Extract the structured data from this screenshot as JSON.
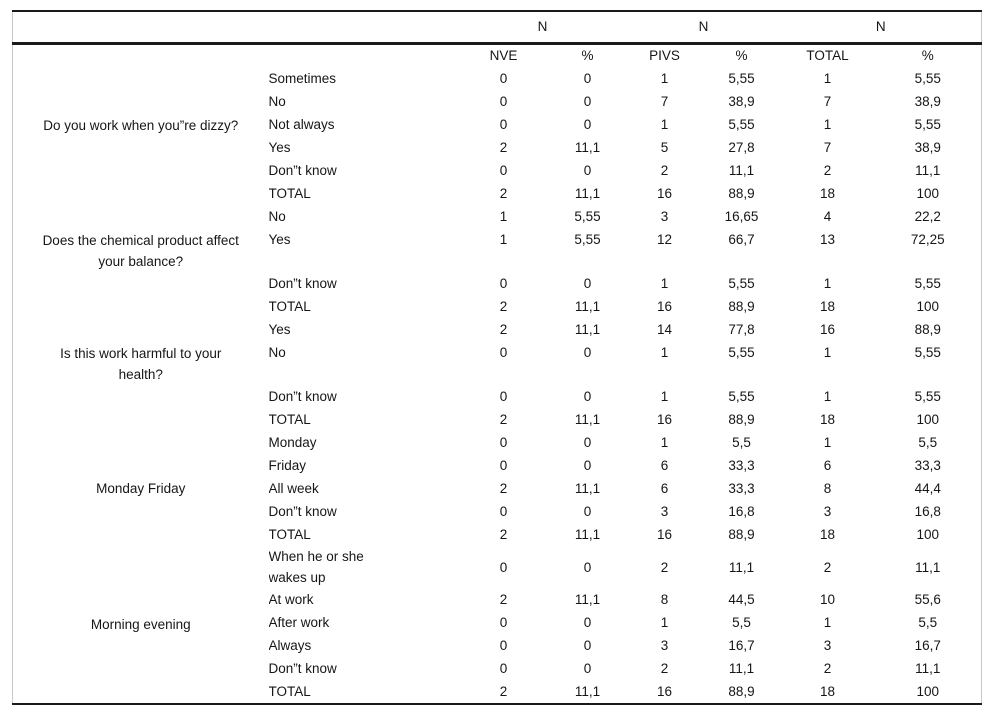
{
  "table": {
    "group_header": [
      "N",
      "N",
      "N"
    ],
    "columns": [
      "",
      "",
      "NVE",
      "%",
      "PIVS",
      "%",
      "TOTAL",
      "%"
    ],
    "sections": [
      {
        "question": "Do you work when you”re dizzy?",
        "rows": [
          {
            "answer": "Sometimes",
            "values": [
              "0",
              "0",
              "1",
              "5,55",
              "1",
              "5,55"
            ]
          },
          {
            "answer": "No",
            "values": [
              "0",
              "0",
              "7",
              "38,9",
              "7",
              "38,9"
            ]
          },
          {
            "answer": "Not always",
            "values": [
              "0",
              "0",
              "1",
              "5,55",
              "1",
              "5,55"
            ]
          },
          {
            "answer": "Yes",
            "values": [
              "2",
              "11,1",
              "5",
              "27,8",
              "7",
              "38,9"
            ]
          },
          {
            "answer": "Don”t know",
            "values": [
              "0",
              "0",
              "2",
              "11,1",
              "2",
              "11,1"
            ]
          },
          {
            "answer": "TOTAL",
            "values": [
              "2",
              "11,1",
              "16",
              "88,9",
              "18",
              "100"
            ]
          }
        ]
      },
      {
        "question": "Does the chemical product affect\nyour balance?",
        "rows": [
          {
            "answer": "No",
            "values": [
              "1",
              "5,55",
              "3",
              "16,65",
              "4",
              "22,2"
            ]
          },
          {
            "answer": "Yes",
            "values": [
              "1",
              "5,55",
              "12",
              "66,7",
              "13",
              "72,25"
            ]
          },
          {
            "answer": "",
            "values": [
              "",
              "",
              "",
              "",
              "",
              ""
            ]
          },
          {
            "answer": "Don”t know",
            "values": [
              "0",
              "0",
              "1",
              "5,55",
              "1",
              "5,55"
            ]
          },
          {
            "answer": "TOTAL",
            "values": [
              "2",
              "11,1",
              "16",
              "88,9",
              "18",
              "100"
            ]
          }
        ]
      },
      {
        "question": "Is this work harmful to your\nhealth?",
        "rows": [
          {
            "answer": "Yes",
            "values": [
              "2",
              "11,1",
              "14",
              "77,8",
              "16",
              "88,9"
            ]
          },
          {
            "answer": "No",
            "values": [
              "0",
              "0",
              "1",
              "5,55",
              "1",
              "5,55"
            ]
          },
          {
            "answer": "",
            "values": [
              "",
              "",
              "",
              "",
              "",
              ""
            ]
          },
          {
            "answer": "Don”t know",
            "values": [
              "0",
              "0",
              "1",
              "5,55",
              "1",
              "5,55"
            ]
          },
          {
            "answer": "TOTAL",
            "values": [
              "2",
              "11,1",
              "16",
              "88,9",
              "18",
              "100"
            ]
          }
        ]
      },
      {
        "question": "Monday Friday",
        "rows": [
          {
            "answer": "Monday",
            "values": [
              "0",
              "0",
              "1",
              "5,5",
              "1",
              "5,5"
            ]
          },
          {
            "answer": "Friday",
            "values": [
              "0",
              "0",
              "6",
              "33,3",
              "6",
              "33,3"
            ]
          },
          {
            "answer": "All week",
            "values": [
              "2",
              "11,1",
              "6",
              "33,3",
              "8",
              "44,4"
            ]
          },
          {
            "answer": "Don”t know",
            "values": [
              "0",
              "0",
              "3",
              "16,8",
              "3",
              "16,8"
            ]
          },
          {
            "answer": "TOTAL",
            "values": [
              "2",
              "11,1",
              "16",
              "88,9",
              "18",
              "100"
            ]
          }
        ]
      },
      {
        "question": "Morning evening",
        "rows": [
          {
            "answer": "When he or she\nwakes up",
            "values": [
              "0",
              "0",
              "2",
              "11,1",
              "2",
              "11,1"
            ]
          },
          {
            "answer": "At work",
            "values": [
              "2",
              "11,1",
              "8",
              "44,5",
              "10",
              "55,6"
            ]
          },
          {
            "answer": "After work",
            "values": [
              "0",
              "0",
              "1",
              "5,5",
              "1",
              "5,5"
            ]
          },
          {
            "answer": "Always",
            "values": [
              "0",
              "0",
              "3",
              "16,7",
              "3",
              "16,7"
            ]
          },
          {
            "answer": "Don”t know",
            "values": [
              "0",
              "0",
              "2",
              "11,1",
              "2",
              "11,1"
            ]
          },
          {
            "answer": "TOTAL",
            "values": [
              "2",
              "11,1",
              "16",
              "88,9",
              "18",
              "100"
            ]
          }
        ]
      }
    ]
  }
}
